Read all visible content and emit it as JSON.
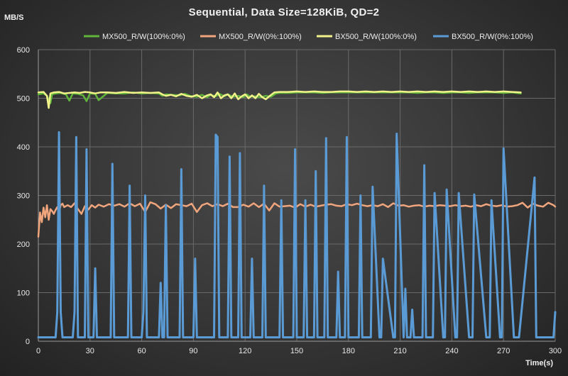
{
  "chart_data": {
    "type": "line",
    "title": "Sequential,  Data Size=128KiB,  QD=2",
    "ylabel": "MB/S",
    "xlabel": "Time(s)",
    "xlim": [
      0,
      300
    ],
    "ylim": [
      0,
      600
    ],
    "xticks": [
      0,
      30,
      60,
      90,
      120,
      150,
      180,
      210,
      240,
      270,
      300
    ],
    "yticks": [
      0,
      100,
      200,
      300,
      400,
      500,
      600
    ],
    "grid": true,
    "legend_position": "top",
    "series": [
      {
        "name": "MX500_R/W(100%:0%)",
        "color": "#5fb53a",
        "x": [
          0,
          3,
          5,
          7,
          8,
          10,
          13,
          16,
          18,
          20,
          23,
          26,
          28,
          30,
          33,
          35,
          40,
          45,
          50,
          55,
          60,
          65,
          70,
          72,
          74,
          78,
          82,
          85,
          88,
          92,
          95,
          98,
          100,
          103,
          105,
          108,
          110,
          113,
          116,
          119,
          121,
          123,
          126,
          129,
          132,
          135,
          138,
          140,
          145,
          150,
          155,
          160,
          165,
          170,
          175,
          180,
          185,
          190,
          195,
          200,
          205,
          210,
          215,
          220,
          225,
          230,
          235,
          240,
          245,
          250,
          255,
          260,
          265,
          270,
          275,
          280
        ],
        "values": [
          508,
          510,
          505,
          490,
          508,
          510,
          511,
          508,
          495,
          510,
          509,
          506,
          494,
          510,
          509,
          496,
          511,
          510,
          510,
          512,
          510,
          511,
          510,
          505,
          508,
          507,
          506,
          509,
          505,
          503,
          507,
          502,
          507,
          504,
          509,
          504,
          508,
          503,
          505,
          502,
          508,
          503,
          504,
          502,
          505,
          503,
          510,
          511,
          511,
          512,
          512,
          512,
          511,
          512,
          512,
          512,
          512,
          512,
          512,
          512,
          512,
          512,
          512,
          511,
          512,
          512,
          511,
          512,
          512,
          511,
          512,
          512,
          512,
          511,
          512,
          510
        ]
      },
      {
        "name": "MX500_R/W(0%:100%)",
        "color": "#f0a57c",
        "x": [
          0,
          1,
          2,
          3,
          4,
          5,
          6,
          7,
          8,
          9,
          10,
          11,
          12,
          13,
          14,
          15,
          17,
          19,
          21,
          23,
          25,
          27,
          29,
          31,
          33,
          35,
          38,
          41,
          44,
          47,
          50,
          53,
          56,
          59,
          62,
          65,
          68,
          71,
          74,
          77,
          80,
          83,
          86,
          89,
          92,
          95,
          98,
          101,
          104,
          107,
          110,
          113,
          116,
          119,
          122,
          125,
          128,
          131,
          134,
          137,
          140,
          143,
          146,
          149,
          152,
          155,
          158,
          161,
          164,
          167,
          170,
          173,
          176,
          179,
          182,
          185,
          188,
          191,
          194,
          197,
          200,
          203,
          206,
          209,
          212,
          215,
          218,
          221,
          224,
          227,
          230,
          233,
          236,
          239,
          242,
          245,
          248,
          251,
          254,
          257,
          260,
          263,
          266,
          269,
          272,
          275,
          278,
          281,
          284,
          287,
          290,
          293,
          296,
          299,
          300
        ],
        "values": [
          215,
          265,
          245,
          275,
          255,
          280,
          250,
          272,
          268,
          262,
          270,
          276,
          265,
          280,
          283,
          276,
          280,
          276,
          284,
          272,
          262,
          278,
          271,
          280,
          275,
          281,
          277,
          282,
          279,
          282,
          277,
          284,
          278,
          283,
          266,
          286,
          282,
          273,
          281,
          274,
          282,
          280,
          278,
          283,
          266,
          280,
          284,
          278,
          282,
          278,
          283,
          276,
          276,
          281,
          277,
          284,
          276,
          283,
          269,
          284,
          277,
          278,
          279,
          275,
          282,
          277,
          281,
          277,
          279,
          281,
          282,
          279,
          278,
          282,
          280,
          283,
          280,
          278,
          280,
          278,
          282,
          276,
          284,
          279,
          280,
          277,
          279,
          280,
          277,
          279,
          278,
          280,
          279,
          278,
          280,
          278,
          279,
          277,
          280,
          278,
          282,
          279,
          278,
          280,
          277,
          278,
          280,
          285,
          275,
          283,
          279,
          277,
          285,
          280,
          277
        ]
      },
      {
        "name": "BX500_R/W(100%:0%)",
        "color": "#f2f28a",
        "x": [
          0,
          3,
          5,
          6,
          7,
          9,
          12,
          15,
          18,
          21,
          24,
          27,
          30,
          33,
          36,
          40,
          45,
          50,
          55,
          60,
          65,
          70,
          72,
          74,
          77,
          80,
          83,
          86,
          89,
          92,
          95,
          98,
          100,
          102,
          104,
          106,
          108,
          110,
          112,
          114,
          116,
          118,
          120,
          122,
          124,
          126,
          128,
          130,
          132,
          134,
          137,
          140,
          145,
          150,
          155,
          160,
          165,
          170,
          175,
          180,
          185,
          190,
          195,
          200,
          205,
          210,
          215,
          220,
          225,
          230,
          235,
          240,
          245,
          250,
          255,
          260,
          265,
          270,
          275,
          280
        ],
        "values": [
          512,
          513,
          505,
          480,
          510,
          512,
          513,
          510,
          511,
          512,
          511,
          513,
          512,
          510,
          512,
          512,
          511,
          513,
          511,
          512,
          511,
          512,
          508,
          505,
          507,
          504,
          509,
          505,
          503,
          507,
          500,
          506,
          508,
          502,
          512,
          500,
          506,
          508,
          500,
          510,
          498,
          504,
          508,
          500,
          506,
          500,
          509,
          502,
          498,
          504,
          512,
          513,
          513,
          514,
          513,
          514,
          513,
          513,
          514,
          514,
          513,
          514,
          513,
          514,
          513,
          514,
          513,
          514,
          513,
          514,
          513,
          514,
          513,
          514,
          513,
          514,
          513,
          514,
          513,
          512
        ]
      },
      {
        "name": "BX500_R/W(0%:100%)",
        "color": "#5b9bd5",
        "x": [
          0,
          10,
          11,
          12,
          13,
          14,
          20,
          21,
          22,
          23,
          27,
          28,
          29,
          32,
          33,
          34,
          42,
          43,
          44,
          52,
          53,
          54,
          60,
          61,
          62,
          63,
          70,
          71,
          72,
          73,
          74,
          75,
          76,
          77,
          82,
          83,
          84,
          85,
          90,
          91,
          92,
          102,
          103,
          104,
          105,
          110,
          111,
          112,
          116,
          117,
          118,
          119,
          123,
          124,
          125,
          130,
          131,
          132,
          133,
          134,
          135,
          140,
          141,
          142,
          148,
          149,
          150,
          151,
          152,
          154,
          155,
          156,
          160,
          161,
          162,
          166,
          167,
          168,
          173,
          174,
          175,
          176,
          178,
          179,
          180,
          186,
          187,
          188,
          189,
          192,
          193,
          194,
          198,
          199,
          200,
          206,
          207,
          208,
          212,
          213,
          214,
          216,
          217,
          218,
          223,
          224,
          225,
          226,
          228,
          229,
          230,
          235,
          236,
          237,
          242,
          243,
          244,
          250,
          251,
          252,
          253,
          260,
          261,
          262,
          263,
          268,
          269,
          270,
          276,
          277,
          278,
          279,
          288,
          289,
          290,
          291,
          298,
          299,
          300
        ],
        "values": [
          8,
          8,
          60,
          430,
          60,
          8,
          8,
          60,
          420,
          8,
          8,
          395,
          8,
          8,
          150,
          8,
          8,
          365,
          8,
          8,
          320,
          8,
          8,
          60,
          300,
          8,
          8,
          120,
          8,
          8,
          280,
          8,
          8,
          8,
          8,
          354,
          8,
          8,
          8,
          170,
          8,
          8,
          425,
          420,
          8,
          8,
          380,
          8,
          8,
          387,
          8,
          8,
          8,
          170,
          8,
          8,
          320,
          8,
          8,
          8,
          8,
          8,
          290,
          8,
          8,
          395,
          8,
          8,
          8,
          8,
          290,
          8,
          8,
          350,
          8,
          8,
          418,
          8,
          8,
          143,
          8,
          8,
          8,
          420,
          8,
          8,
          300,
          8,
          8,
          8,
          8,
          318,
          8,
          8,
          170,
          8,
          8,
          427,
          8,
          108,
          8,
          8,
          65,
          8,
          8,
          362,
          8,
          8,
          8,
          8,
          305,
          8,
          8,
          312,
          8,
          8,
          305,
          8,
          8,
          8,
          302,
          8,
          8,
          8,
          290,
          8,
          8,
          397,
          8,
          8,
          8,
          8,
          337,
          8,
          8,
          8,
          8,
          8,
          60
        ]
      }
    ]
  }
}
